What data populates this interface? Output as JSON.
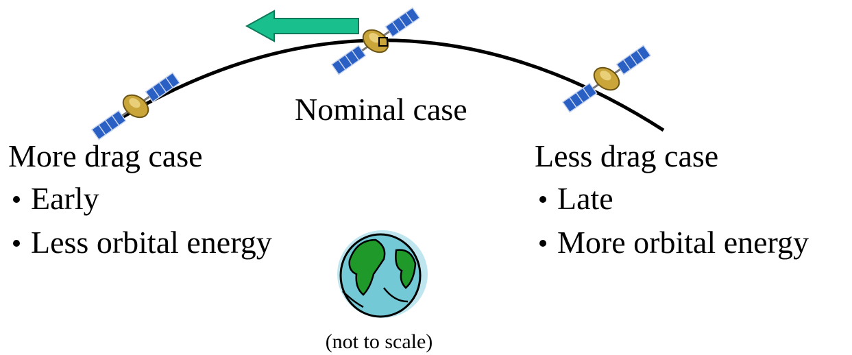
{
  "nominal": {
    "label": "Nominal case"
  },
  "more_drag": {
    "title": "More drag case",
    "bullets": [
      "Early",
      "Less orbital energy"
    ]
  },
  "less_drag": {
    "title": "Less drag case",
    "bullets": [
      "Late",
      "More orbital energy"
    ]
  },
  "note": "(not to scale)"
}
